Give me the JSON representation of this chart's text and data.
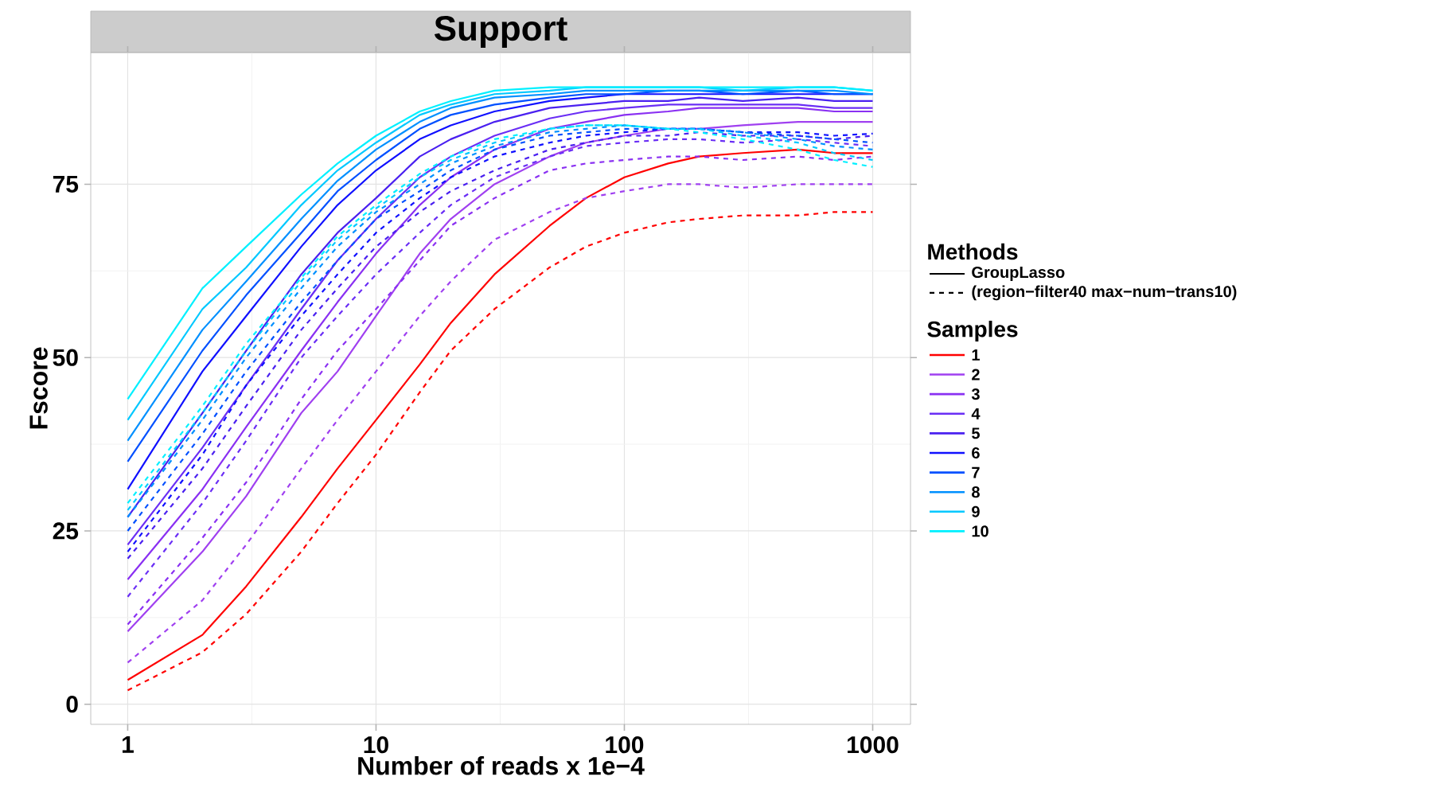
{
  "chart_data": {
    "type": "line",
    "title": "Support",
    "xlabel": "Number of reads x 1e−4",
    "ylabel": "Fscore",
    "log": "x",
    "grid": true,
    "legend": "right",
    "legend_title": "Samples",
    "annotations": [
      "Methods",
      "GroupLasso",
      "(region−filter40 max−num−trans10)"
    ],
    "x": [
      1,
      2,
      3,
      5,
      7,
      10,
      15,
      20,
      30,
      50,
      70,
      100,
      150,
      200,
      300,
      500,
      700,
      1000
    ],
    "xlim": [
      0.71,
      1420
    ],
    "ylim": [
      -2.9,
      94
    ],
    "xticks": [
      1,
      10,
      100,
      1000
    ],
    "yticks": [
      0,
      25,
      50,
      75
    ],
    "series": [
      {
        "name": "1",
        "color": "#ff0000",
        "line_style": "solid",
        "values": [
          3.5,
          10,
          17,
          27,
          34,
          41,
          49,
          55,
          62,
          69,
          73,
          76,
          78,
          79,
          79.5,
          80,
          79.5,
          79.5
        ]
      },
      {
        "color": "#ff0000",
        "line_style": "dashed",
        "values": [
          2,
          7.5,
          13,
          22,
          29,
          36,
          45,
          51,
          57,
          63,
          66,
          68,
          69.5,
          70,
          70.5,
          70.5,
          71,
          71
        ]
      },
      {
        "name": "2",
        "color": "#a040f0",
        "line_style": "solid",
        "values": [
          10.5,
          22,
          30,
          42,
          48,
          56,
          65,
          70,
          75,
          79,
          81,
          82,
          83,
          83,
          83.5,
          84,
          84,
          84
        ]
      },
      {
        "color": "#a040f0",
        "line_style": "dashed",
        "values": [
          6,
          15,
          23,
          34,
          41,
          48,
          56,
          61,
          67,
          71,
          73,
          74,
          75,
          75,
          74.5,
          75,
          75,
          75
        ]
      },
      {
        "name": "3",
        "color": "#8a30f2",
        "line_style": "solid",
        "values": [
          18,
          31,
          40,
          51,
          58,
          65,
          72,
          76,
          80,
          83,
          84,
          85,
          85.5,
          86,
          86,
          86,
          85.5,
          85.5
        ]
      },
      {
        "color": "#8a30f2",
        "line_style": "dashed",
        "values": [
          11.5,
          24,
          32,
          44,
          51,
          57,
          64,
          69,
          73,
          77,
          78,
          78.5,
          79,
          79,
          78.5,
          79,
          78.5,
          79
        ]
      },
      {
        "name": "4",
        "color": "#6a2ef5",
        "line_style": "solid",
        "values": [
          23,
          37,
          46,
          57,
          64,
          70,
          76,
          79,
          82,
          84.5,
          85.5,
          86,
          86.5,
          86.5,
          86.5,
          86.5,
          86,
          86
        ]
      },
      {
        "color": "#6a2ef5",
        "line_style": "dashed",
        "values": [
          15.5,
          29,
          38,
          50,
          56,
          62,
          68,
          72,
          76,
          79,
          80.5,
          81,
          81.5,
          81.5,
          81,
          81.5,
          81,
          80.5
        ]
      },
      {
        "name": "5",
        "color": "#4a20f0",
        "line_style": "solid",
        "values": [
          27,
          42,
          51,
          62,
          68,
          73,
          79,
          81.5,
          84,
          86,
          86.5,
          87,
          87,
          87.5,
          87,
          87.5,
          87,
          87
        ]
      },
      {
        "color": "#4a20f0",
        "line_style": "dashed",
        "values": [
          21,
          34,
          43,
          54,
          60,
          66,
          71,
          74,
          77,
          80,
          81,
          82,
          82,
          82.5,
          82,
          82,
          81.5,
          82
        ]
      },
      {
        "name": "6",
        "color": "#1010ff",
        "line_style": "solid",
        "values": [
          31,
          48,
          56,
          66,
          72,
          77,
          81.5,
          83.5,
          85.5,
          87,
          87.5,
          88,
          88,
          88,
          88,
          88,
          88,
          88
        ]
      },
      {
        "color": "#1010ff",
        "line_style": "dashed",
        "values": [
          22,
          36,
          46,
          56,
          62,
          68,
          73,
          76,
          79,
          81,
          82,
          82.5,
          83,
          83,
          82.5,
          82.5,
          82,
          82.3
        ]
      },
      {
        "name": "7",
        "color": "#0050ff",
        "line_style": "solid",
        "values": [
          35,
          51,
          59,
          68,
          74,
          78.5,
          83,
          85,
          86.5,
          87.5,
          88,
          88,
          88.5,
          88.5,
          88,
          88.5,
          88,
          88
        ]
      },
      {
        "color": "#0050ff",
        "line_style": "dashed",
        "values": [
          25,
          39,
          48,
          58,
          64,
          70,
          74,
          77,
          80,
          82,
          82.5,
          83,
          83,
          83,
          82.5,
          82,
          81.5,
          81
        ]
      },
      {
        "name": "8",
        "color": "#0090ff",
        "line_style": "solid",
        "values": [
          38,
          54,
          61,
          70,
          75.5,
          80,
          84,
          86,
          87.5,
          88,
          88.5,
          88.5,
          88.5,
          88.5,
          88.5,
          88.5,
          88.5,
          88
        ]
      },
      {
        "color": "#0090ff",
        "line_style": "dashed",
        "values": [
          27,
          41,
          50,
          60,
          66,
          71,
          75,
          78,
          80.5,
          82.5,
          83,
          83.5,
          83,
          83,
          82.5,
          81.5,
          80.5,
          80
        ]
      },
      {
        "name": "9",
        "color": "#00c8ff",
        "line_style": "solid",
        "values": [
          41,
          57,
          63,
          72,
          77,
          81,
          85,
          86.5,
          88,
          88.5,
          89,
          89,
          89,
          89,
          88.5,
          89,
          89,
          88.5
        ]
      },
      {
        "color": "#00c8ff",
        "line_style": "dashed",
        "values": [
          28,
          42,
          51,
          61,
          67,
          71.5,
          76,
          78.5,
          81,
          83,
          83.5,
          83.5,
          83,
          83,
          82,
          81,
          79.5,
          78.5
        ]
      },
      {
        "name": "10",
        "color": "#00f0ff",
        "line_style": "solid",
        "values": [
          44,
          60,
          66,
          73.5,
          78,
          82,
          85.5,
          87,
          88.5,
          89,
          89,
          89,
          89,
          89,
          89,
          89,
          89,
          88.5
        ]
      },
      {
        "color": "#00f0ff",
        "line_style": "dashed",
        "values": [
          29,
          43,
          52,
          61.5,
          67.5,
          72,
          76.5,
          79,
          81.5,
          83,
          83.5,
          83.5,
          83,
          82.5,
          81.5,
          80,
          78.5,
          77.5
        ]
      }
    ]
  }
}
